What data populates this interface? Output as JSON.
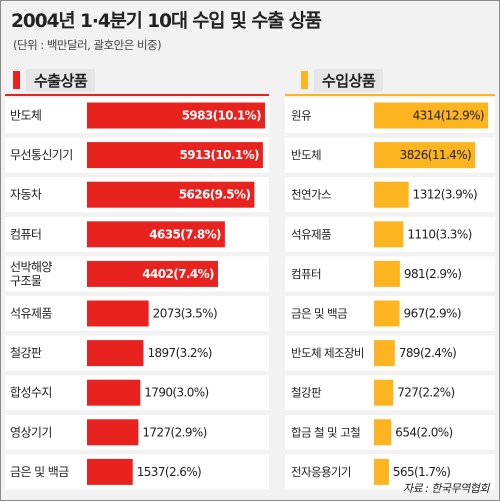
{
  "title": "2004년 1·4분기 10대 수입 및 수출 상품",
  "subtitle": "(단위 : 백만달러, 괄호안은 비중)",
  "source": "자료 : 한국무역협회",
  "colors": {
    "export": "#e8231f",
    "import": "#fcb521",
    "row_bg": "#ffffff",
    "bg": "#f2f2f2"
  },
  "chart_data": [
    {
      "type": "bar",
      "title": "수출상품",
      "categories": [
        "반도체",
        "무선통신기기",
        "자동차",
        "컴퓨터",
        "선박해양\n구조물",
        "석유제품",
        "철강판",
        "합성수지",
        "영상기기",
        "금은 및 백금"
      ],
      "values": [
        5983,
        5913,
        5626,
        4635,
        4402,
        2073,
        1897,
        1790,
        1727,
        1537
      ],
      "labels": [
        "5983(10.1%)",
        "5913(10.1%)",
        "5626(9.5%)",
        "4635(7.8%)",
        "4402(7.4%)",
        "2073(3.5%)",
        "1897(3.2%)",
        "1790(3.0%)",
        "1727(2.9%)",
        "1537(2.6%)"
      ],
      "color": "#e8231f"
    },
    {
      "type": "bar",
      "title": "수입상품",
      "categories": [
        "원유",
        "반도체",
        "천연가스",
        "석유제품",
        "컴퓨터",
        "금은 및 백금",
        "반도체 제조장비",
        "철강판",
        "합금 철 및 고철",
        "전자응용기기"
      ],
      "values": [
        4314,
        3826,
        1312,
        1110,
        981,
        967,
        789,
        727,
        654,
        565
      ],
      "labels": [
        "4314(12.9%)",
        "3826(11.4%)",
        "1312(3.9%)",
        "1110(3.3%)",
        "981(2.9%)",
        "967(2.9%)",
        "789(2.4%)",
        "727(2.2%)",
        "654(2.0%)",
        "565(1.7%)"
      ],
      "color": "#fcb521"
    }
  ]
}
